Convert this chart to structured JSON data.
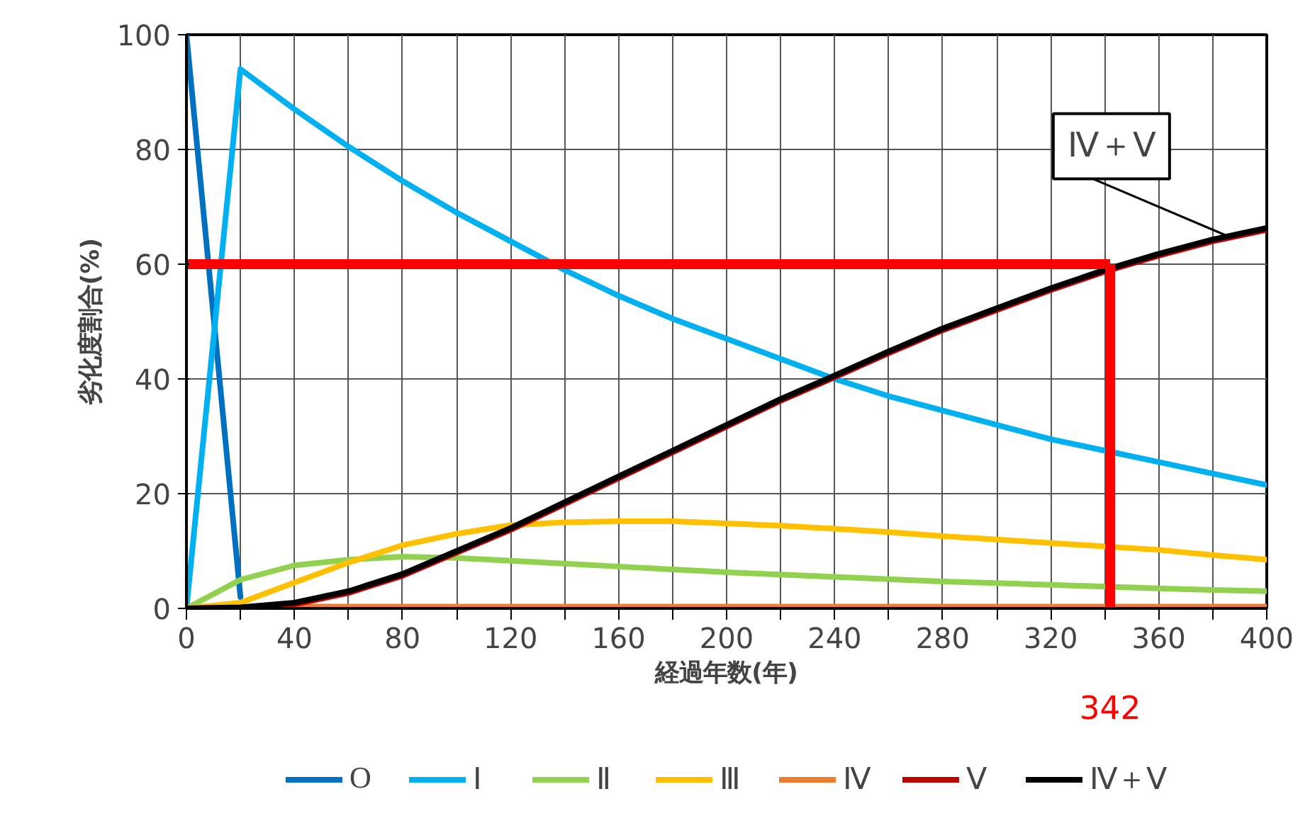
{
  "chart_data": {
    "type": "line",
    "xlabel": "経過年数(年)",
    "ylabel": "劣化度割合(%)",
    "x": [
      0,
      20,
      40,
      60,
      80,
      100,
      120,
      140,
      160,
      180,
      200,
      220,
      240,
      260,
      280,
      300,
      320,
      340,
      360,
      380,
      400
    ],
    "xlim": [
      0,
      400
    ],
    "xticks": [
      0,
      {
        "value": 20,
        "label": null
      },
      40,
      {
        "value": 60,
        "label": null
      },
      80,
      {
        "value": 100,
        "label": null
      },
      120,
      {
        "value": 140,
        "label": null
      },
      160,
      {
        "value": 180,
        "label": null
      },
      200,
      {
        "value": 220,
        "label": null
      },
      240,
      {
        "value": 260,
        "label": null
      },
      280,
      {
        "value": 300,
        "label": null
      },
      320,
      {
        "value": 340,
        "label": null
      },
      360,
      {
        "value": 380,
        "label": null
      },
      400
    ],
    "ylim": [
      0,
      100
    ],
    "yticks": [
      0,
      20,
      40,
      60,
      80,
      100
    ],
    "grid": true,
    "legend": "bottom",
    "line_style": "solid",
    "marker": "none",
    "series": [
      {
        "name": "O",
        "color": "#0070c0",
        "values": [
          100,
          2,
          null,
          null,
          null,
          null,
          null,
          null,
          null,
          null,
          null,
          null,
          null,
          null,
          null,
          null,
          null,
          null,
          null,
          null,
          null
        ]
      },
      {
        "name": "Ⅰ",
        "color": "#00b0f0",
        "values": [
          0,
          94,
          87,
          80.5,
          74.5,
          69,
          64,
          59,
          54.5,
          50.5,
          47,
          43.5,
          40,
          37,
          34.5,
          32,
          29.5,
          27.5,
          25.5,
          23.5,
          21.5
        ]
      },
      {
        "name": "Ⅱ",
        "color": "#92d050",
        "values": [
          0,
          5,
          7.5,
          8.5,
          9,
          8.8,
          8.3,
          7.8,
          7.3,
          6.8,
          6.3,
          5.9,
          5.5,
          5.1,
          4.7,
          4.4,
          4.1,
          3.8,
          3.5,
          3.2,
          3
        ]
      },
      {
        "name": "Ⅲ",
        "color": "#ffc000",
        "values": [
          0,
          1,
          4.5,
          8,
          11,
          13,
          14.5,
          15,
          15.2,
          15.2,
          14.8,
          14.4,
          13.9,
          13.3,
          12.6,
          12,
          11.4,
          10.8,
          10.2,
          9.3,
          8.5
        ]
      },
      {
        "name": "Ⅳ",
        "color": "#ed7d31",
        "values": [
          0,
          0.1,
          0.3,
          0.3,
          0.3,
          0.3,
          0.3,
          0.3,
          0.3,
          0.3,
          0.3,
          0.3,
          0.3,
          0.3,
          0.3,
          0.3,
          0.3,
          0.3,
          0.3,
          0.3,
          0.3
        ]
      },
      {
        "name": "Ⅴ",
        "color": "#c00000",
        "values": [
          0,
          0.1,
          0.7,
          2.7,
          5.7,
          9.7,
          13.7,
          18.2,
          22.7,
          27.2,
          31.7,
          36.2,
          40.3,
          44.5,
          48.5,
          52,
          55.5,
          58.7,
          61.5,
          64,
          66
        ]
      },
      {
        "name": "Ⅳ＋Ⅴ",
        "color": "#000000",
        "values": [
          0,
          0.2,
          1,
          3,
          6,
          10,
          14,
          18.5,
          23,
          27.5,
          32,
          36.5,
          40.6,
          44.8,
          48.8,
          52.3,
          55.8,
          59,
          61.8,
          64.3,
          66.3
        ]
      }
    ],
    "ref_lines": [
      {
        "axis": "y",
        "value": 60,
        "label": null,
        "color": "#ff0000"
      },
      {
        "axis": "x",
        "value": 342,
        "label": "342",
        "color": "#ff0000"
      }
    ],
    "annotations": [
      {
        "text": "Ⅳ＋Ⅴ",
        "x": 385,
        "y": 65
      }
    ]
  }
}
